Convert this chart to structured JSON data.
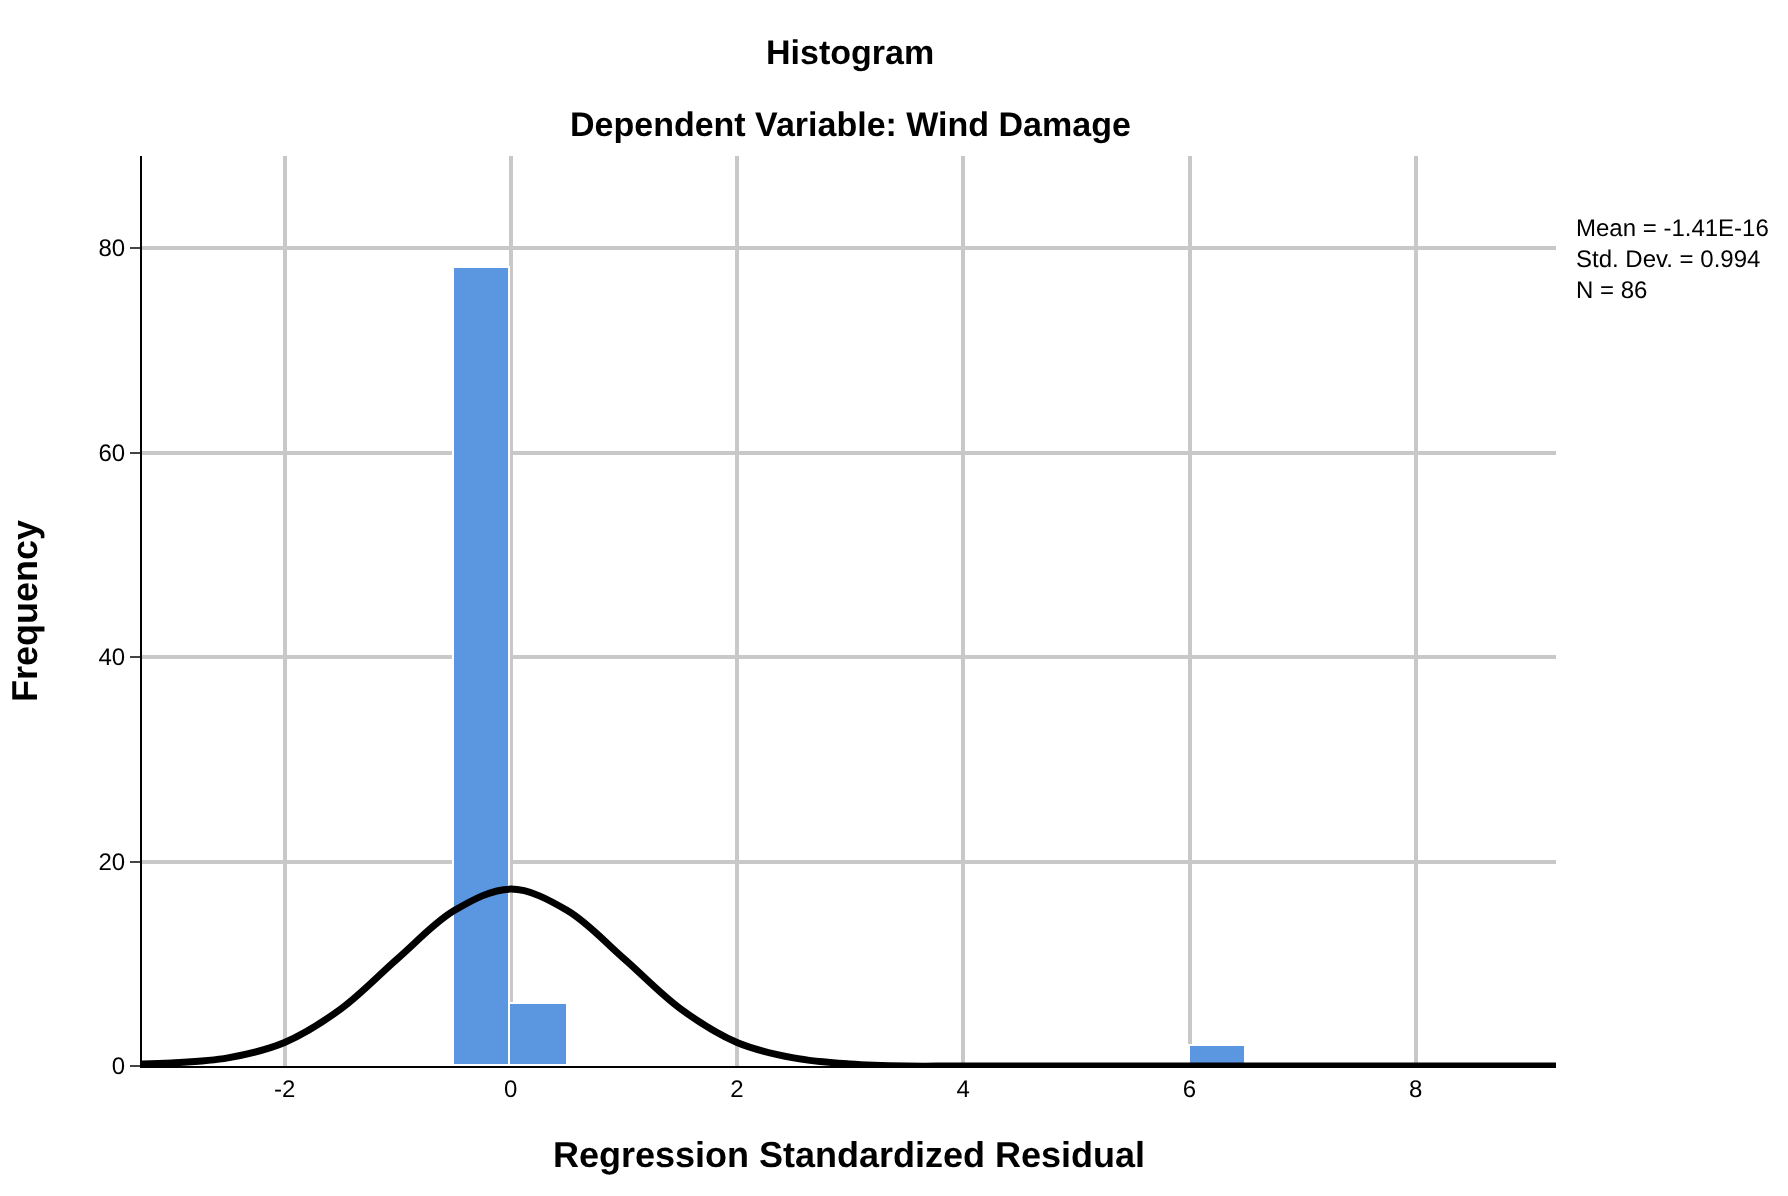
{
  "chart_data": {
    "type": "histogram",
    "title": "Histogram",
    "subtitle": "Dependent Variable: Wind Damage",
    "xlabel": "Regression Standardized Residual",
    "ylabel": "Frequency",
    "annotations": [
      "Mean = -1.41E-16",
      "Std. Dev. = 0.994",
      "N = 86"
    ],
    "series": [
      {
        "color": "#5b96e0",
        "bins": [
          -0.5,
          0,
          0.5,
          1,
          1.5,
          2,
          2.5,
          3,
          3.5,
          4,
          4.5,
          5,
          5.5,
          6,
          6.5
        ],
        "values": [
          78,
          6,
          0,
          0,
          0,
          0,
          0,
          0,
          0,
          0,
          0,
          0,
          0,
          2
        ]
      },
      {
        "type": "line",
        "color": "#000000",
        "x": [
          -3.26,
          -3,
          -2.5,
          -2,
          -1.5,
          -1,
          -0.5,
          0,
          0.5,
          1,
          1.5,
          2,
          2.5,
          3,
          3.5,
          4,
          9.24
        ],
        "values": [
          0.2,
          0.3,
          0.8,
          2.3,
          5.6,
          10.5,
          15.2,
          17.3,
          15.2,
          10.5,
          5.6,
          2.3,
          0.8,
          0.2,
          0,
          0,
          0
        ]
      }
    ],
    "xlim": [
      -3.26,
      9.24
    ],
    "xticks": [
      -2,
      0,
      2,
      4,
      6,
      8
    ],
    "ylim": [
      0,
      89
    ],
    "yticks": [
      0,
      20,
      40,
      60,
      80
    ],
    "grid": true
  }
}
